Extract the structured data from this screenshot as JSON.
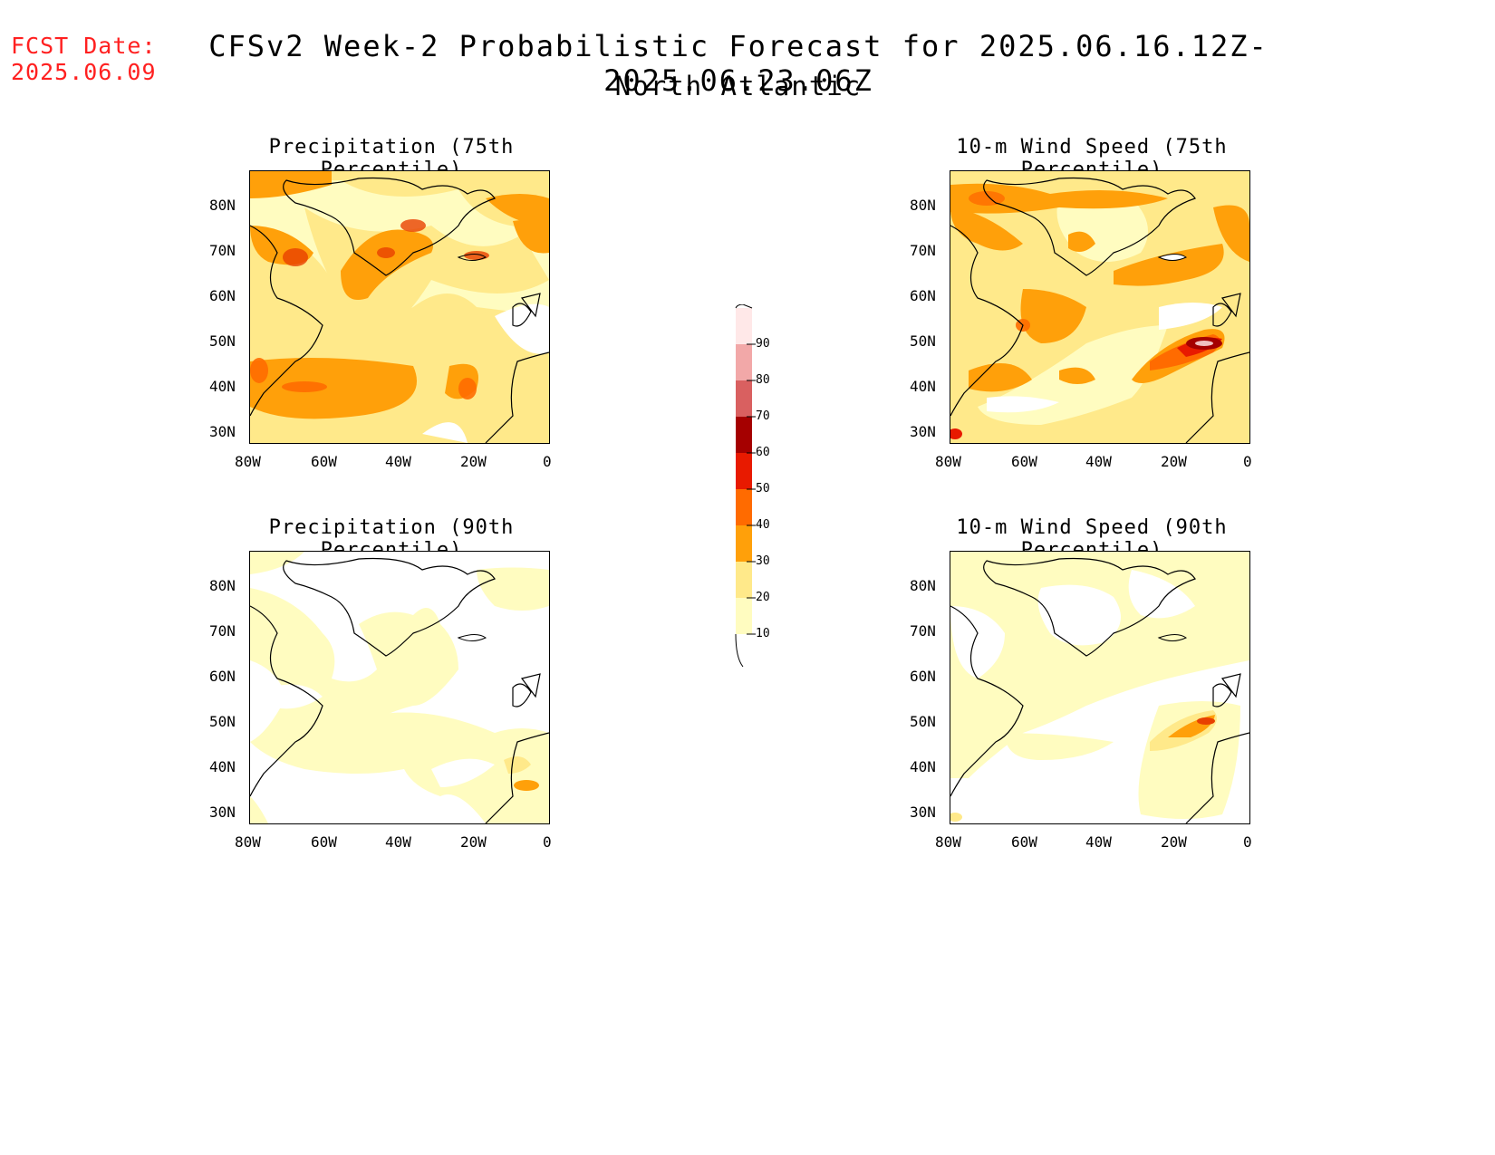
{
  "fcst": {
    "line1": "FCST Date:",
    "line2": "2025.06.09"
  },
  "title": "CFSv2 Week-2 Probabilistic Forecast for 2025.06.16.12Z-2025.06.23.06Z",
  "subtitle": "North Atlantic",
  "panels": [
    {
      "title": "Precipitation (75th Percentile)"
    },
    {
      "title": "10-m Wind Speed (75th Percentile)"
    },
    {
      "title": "Precipitation (90th Percentile)"
    },
    {
      "title": "10-m Wind Speed (90th Percentile)"
    }
  ],
  "lat_ticks": [
    "80N",
    "70N",
    "60N",
    "50N",
    "40N",
    "30N"
  ],
  "lon_ticks": [
    "80W",
    "60W",
    "40W",
    "20W",
    "0"
  ],
  "colorbar": {
    "levels": [
      "10",
      "20",
      "30",
      "40",
      "50",
      "60",
      "70",
      "80",
      "90"
    ],
    "colors": [
      "#fffcc0",
      "#ffe98a",
      "#ffa00a",
      "#ff6b00",
      "#e81a00",
      "#a50000",
      "#d96060",
      "#f2a8a8",
      "#ffe8e8"
    ]
  }
}
